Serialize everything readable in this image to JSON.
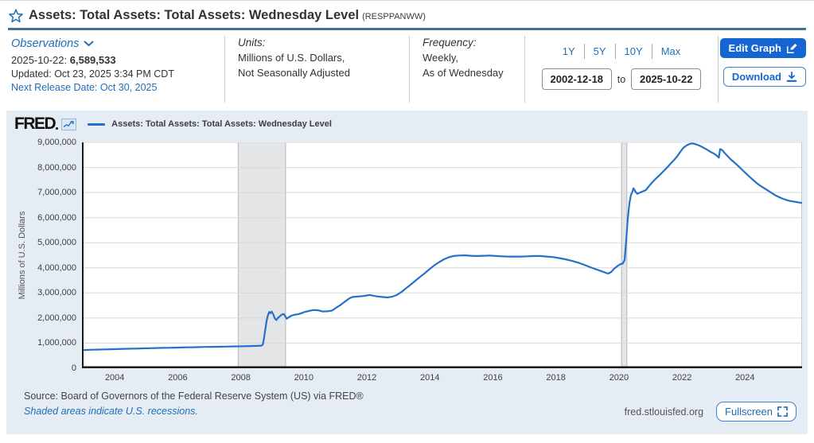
{
  "header": {
    "title": "Assets: Total Assets: Total Assets: Wednesday Level",
    "series_id": "(RESPPANWW)"
  },
  "observations": {
    "label": "Observations",
    "latest_date": "2025-10-22:",
    "latest_value": "6,589,533",
    "updated": "Updated: Oct 23, 2025 3:34 PM CDT",
    "next_release": "Next Release Date: Oct 30, 2025"
  },
  "units": {
    "label": "Units:",
    "line1": "Millions of U.S. Dollars,",
    "line2": "Not Seasonally Adjusted"
  },
  "frequency": {
    "label": "Frequency:",
    "line1": "Weekly,",
    "line2": "As of Wednesday"
  },
  "range": {
    "options": [
      "1Y",
      "5Y",
      "10Y",
      "Max"
    ],
    "start_date": "2002-12-18",
    "to_label": "to",
    "end_date": "2025-10-22"
  },
  "actions": {
    "edit_graph": "Edit Graph",
    "download": "Download"
  },
  "chart": {
    "logo": "FRED",
    "legend": "Assets: Total Assets: Total Assets: Wednesday Level",
    "y_axis_title": "Millions of U.S. Dollars",
    "source": "Source: Board of Governors of the Federal Reserve System (US) via FRED®",
    "recessions_note": "Shaded areas indicate U.S. recessions.",
    "site": "fred.stlouisfed.org",
    "fullscreen": "Fullscreen"
  },
  "colors": {
    "accent_blue": "#1565d2",
    "link_blue": "#1e6fb8",
    "separator": "#45708e",
    "widget_bg": "#e5ecf3"
  },
  "chart_data": {
    "type": "line",
    "title": "Assets: Total Assets: Total Assets: Wednesday Level",
    "xlabel": "",
    "ylabel": "Millions of U.S. Dollars",
    "x_range": [
      2002.96,
      2025.81
    ],
    "y_range": [
      0,
      9000000
    ],
    "x_ticks": [
      2004,
      2006,
      2008,
      2010,
      2012,
      2014,
      2016,
      2018,
      2020,
      2022,
      2024
    ],
    "y_ticks": [
      0,
      1000000,
      2000000,
      3000000,
      4000000,
      5000000,
      6000000,
      7000000,
      8000000,
      9000000
    ],
    "grid": "horizontal",
    "legend_position": "top-left",
    "line_color": "#2471c9",
    "band_color": "#e3e5e7",
    "band_edge_color": "#b3b6b8",
    "recession_bands": [
      {
        "start": 2007.92,
        "end": 2009.42
      },
      {
        "start": 2020.08,
        "end": 2020.25
      }
    ],
    "series": [
      {
        "name": "Assets: Total Assets: Total Assets: Wednesday Level",
        "units": "Millions of U.S. Dollars",
        "last_point": {
          "date": "2025-10-22",
          "value": 6589533
        },
        "points": [
          [
            2002.96,
            720000
          ],
          [
            2003.1,
            728000
          ],
          [
            2003.3,
            738000
          ],
          [
            2003.5,
            745000
          ],
          [
            2003.7,
            752000
          ],
          [
            2003.9,
            758000
          ],
          [
            2004.1,
            765000
          ],
          [
            2004.3,
            772000
          ],
          [
            2004.5,
            778000
          ],
          [
            2004.7,
            784000
          ],
          [
            2004.9,
            792000
          ],
          [
            2005.1,
            798000
          ],
          [
            2005.3,
            804000
          ],
          [
            2005.5,
            810000
          ],
          [
            2005.7,
            816000
          ],
          [
            2005.9,
            822000
          ],
          [
            2006.1,
            828000
          ],
          [
            2006.3,
            833000
          ],
          [
            2006.5,
            838000
          ],
          [
            2006.7,
            843000
          ],
          [
            2006.9,
            848000
          ],
          [
            2007.1,
            852000
          ],
          [
            2007.3,
            857000
          ],
          [
            2007.5,
            862000
          ],
          [
            2007.7,
            867000
          ],
          [
            2007.9,
            872000
          ],
          [
            2008.1,
            878000
          ],
          [
            2008.3,
            884000
          ],
          [
            2008.5,
            890000
          ],
          [
            2008.65,
            900000
          ],
          [
            2008.7,
            940000
          ],
          [
            2008.74,
            1220000
          ],
          [
            2008.78,
            1560000
          ],
          [
            2008.82,
            1900000
          ],
          [
            2008.86,
            2110000
          ],
          [
            2008.9,
            2240000
          ],
          [
            2008.94,
            2190000
          ],
          [
            2008.98,
            2260000
          ],
          [
            2009.03,
            2150000
          ],
          [
            2009.08,
            1980000
          ],
          [
            2009.13,
            1920000
          ],
          [
            2009.18,
            2010000
          ],
          [
            2009.24,
            2070000
          ],
          [
            2009.3,
            2140000
          ],
          [
            2009.36,
            2160000
          ],
          [
            2009.42,
            2050000
          ],
          [
            2009.46,
            1970000
          ],
          [
            2009.52,
            2030000
          ],
          [
            2009.6,
            2090000
          ],
          [
            2009.7,
            2130000
          ],
          [
            2009.85,
            2160000
          ],
          [
            2010.0,
            2230000
          ],
          [
            2010.15,
            2280000
          ],
          [
            2010.3,
            2320000
          ],
          [
            2010.45,
            2310000
          ],
          [
            2010.6,
            2260000
          ],
          [
            2010.75,
            2270000
          ],
          [
            2010.9,
            2300000
          ],
          [
            2011.0,
            2390000
          ],
          [
            2011.15,
            2510000
          ],
          [
            2011.3,
            2650000
          ],
          [
            2011.45,
            2790000
          ],
          [
            2011.55,
            2840000
          ],
          [
            2011.7,
            2860000
          ],
          [
            2011.85,
            2870000
          ],
          [
            2012.0,
            2900000
          ],
          [
            2012.1,
            2920000
          ],
          [
            2012.2,
            2890000
          ],
          [
            2012.35,
            2860000
          ],
          [
            2012.5,
            2840000
          ],
          [
            2012.65,
            2820000
          ],
          [
            2012.8,
            2850000
          ],
          [
            2012.95,
            2920000
          ],
          [
            2013.1,
            3040000
          ],
          [
            2013.25,
            3190000
          ],
          [
            2013.4,
            3340000
          ],
          [
            2013.55,
            3500000
          ],
          [
            2013.7,
            3650000
          ],
          [
            2013.85,
            3800000
          ],
          [
            2014.0,
            3960000
          ],
          [
            2014.15,
            4110000
          ],
          [
            2014.3,
            4230000
          ],
          [
            2014.45,
            4340000
          ],
          [
            2014.6,
            4420000
          ],
          [
            2014.75,
            4470000
          ],
          [
            2014.9,
            4490000
          ],
          [
            2015.1,
            4500000
          ],
          [
            2015.3,
            4480000
          ],
          [
            2015.5,
            4470000
          ],
          [
            2015.7,
            4480000
          ],
          [
            2015.9,
            4490000
          ],
          [
            2016.1,
            4470000
          ],
          [
            2016.3,
            4460000
          ],
          [
            2016.5,
            4450000
          ],
          [
            2016.7,
            4450000
          ],
          [
            2016.9,
            4450000
          ],
          [
            2017.1,
            4460000
          ],
          [
            2017.3,
            4470000
          ],
          [
            2017.5,
            4470000
          ],
          [
            2017.7,
            4450000
          ],
          [
            2017.9,
            4430000
          ],
          [
            2018.1,
            4390000
          ],
          [
            2018.3,
            4340000
          ],
          [
            2018.5,
            4280000
          ],
          [
            2018.7,
            4210000
          ],
          [
            2018.9,
            4120000
          ],
          [
            2019.1,
            4020000
          ],
          [
            2019.3,
            3930000
          ],
          [
            2019.5,
            3840000
          ],
          [
            2019.65,
            3770000
          ],
          [
            2019.75,
            3830000
          ],
          [
            2019.85,
            3970000
          ],
          [
            2019.95,
            4070000
          ],
          [
            2020.05,
            4150000
          ],
          [
            2020.12,
            4170000
          ],
          [
            2020.18,
            4310000
          ],
          [
            2020.23,
            5100000
          ],
          [
            2020.28,
            5970000
          ],
          [
            2020.33,
            6570000
          ],
          [
            2020.38,
            6900000
          ],
          [
            2020.43,
            7040000
          ],
          [
            2020.46,
            7170000
          ],
          [
            2020.52,
            7040000
          ],
          [
            2020.58,
            6950000
          ],
          [
            2020.65,
            6990000
          ],
          [
            2020.75,
            7040000
          ],
          [
            2020.85,
            7100000
          ],
          [
            2020.95,
            7250000
          ],
          [
            2021.05,
            7400000
          ],
          [
            2021.15,
            7530000
          ],
          [
            2021.25,
            7650000
          ],
          [
            2021.35,
            7770000
          ],
          [
            2021.45,
            7900000
          ],
          [
            2021.55,
            8030000
          ],
          [
            2021.65,
            8170000
          ],
          [
            2021.75,
            8300000
          ],
          [
            2021.85,
            8450000
          ],
          [
            2021.95,
            8630000
          ],
          [
            2022.05,
            8790000
          ],
          [
            2022.15,
            8880000
          ],
          [
            2022.25,
            8940000
          ],
          [
            2022.33,
            8960000
          ],
          [
            2022.42,
            8930000
          ],
          [
            2022.52,
            8890000
          ],
          [
            2022.62,
            8830000
          ],
          [
            2022.72,
            8760000
          ],
          [
            2022.82,
            8690000
          ],
          [
            2022.92,
            8610000
          ],
          [
            2023.02,
            8550000
          ],
          [
            2023.1,
            8470000
          ],
          [
            2023.17,
            8390000
          ],
          [
            2023.21,
            8730000
          ],
          [
            2023.28,
            8690000
          ],
          [
            2023.35,
            8580000
          ],
          [
            2023.45,
            8450000
          ],
          [
            2023.55,
            8320000
          ],
          [
            2023.65,
            8210000
          ],
          [
            2023.75,
            8100000
          ],
          [
            2023.85,
            7980000
          ],
          [
            2023.95,
            7860000
          ],
          [
            2024.05,
            7740000
          ],
          [
            2024.15,
            7620000
          ],
          [
            2024.25,
            7510000
          ],
          [
            2024.35,
            7400000
          ],
          [
            2024.45,
            7300000
          ],
          [
            2024.55,
            7220000
          ],
          [
            2024.65,
            7140000
          ],
          [
            2024.75,
            7060000
          ],
          [
            2024.85,
            6980000
          ],
          [
            2024.95,
            6900000
          ],
          [
            2025.05,
            6840000
          ],
          [
            2025.15,
            6780000
          ],
          [
            2025.25,
            6730000
          ],
          [
            2025.35,
            6690000
          ],
          [
            2025.45,
            6660000
          ],
          [
            2025.55,
            6640000
          ],
          [
            2025.65,
            6620000
          ],
          [
            2025.72,
            6600000
          ],
          [
            2025.81,
            6589533
          ]
        ]
      }
    ]
  }
}
